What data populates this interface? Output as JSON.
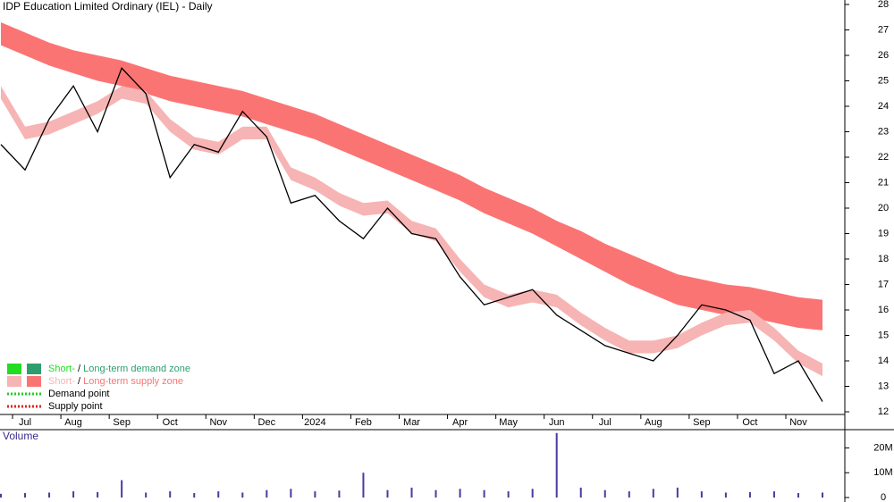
{
  "chart_data": [
    {
      "type": "line",
      "title": "IDP Education Limited Ordinary (IEL) - Daily",
      "categories": [
        null,
        "Jul",
        null,
        "Aug",
        null,
        "Sep",
        null,
        "Oct",
        null,
        "Nov",
        null,
        "Dec",
        null,
        "2024",
        null,
        "Feb",
        null,
        "Mar",
        null,
        "Apr",
        null,
        "May",
        null,
        "Jun",
        null,
        "Jul",
        null,
        "Aug",
        null,
        "Sep",
        null,
        "Oct",
        null,
        "Nov",
        null
      ],
      "ylim": [
        12,
        28
      ],
      "yticks": [
        12,
        13,
        14,
        15,
        16,
        17,
        18,
        19,
        20,
        21,
        22,
        23,
        24,
        25,
        26,
        27,
        28
      ],
      "series": [
        {
          "name": "Long-term supply zone",
          "color": "#fb7474",
          "values": [
            27.3,
            26.9,
            26.5,
            26.2,
            26.0,
            25.8,
            25.5,
            25.2,
            25.0,
            24.8,
            24.6,
            24.3,
            24.0,
            23.7,
            23.3,
            22.9,
            22.5,
            22.1,
            21.7,
            21.3,
            20.8,
            20.4,
            20.0,
            19.5,
            19.1,
            18.6,
            18.2,
            17.8,
            17.4,
            17.2,
            17.0,
            16.9,
            16.7,
            16.5,
            16.4
          ]
        },
        {
          "name": "Long-term supply zone lower",
          "color": "#fb7474",
          "values": [
            26.4,
            26.0,
            25.6,
            25.3,
            25.0,
            24.8,
            24.5,
            24.2,
            24.0,
            23.8,
            23.6,
            23.3,
            23.0,
            22.7,
            22.3,
            21.9,
            21.5,
            21.1,
            20.7,
            20.3,
            19.8,
            19.4,
            19.0,
            18.5,
            18.0,
            17.5,
            17.0,
            16.6,
            16.2,
            16.0,
            15.8,
            15.7,
            15.5,
            15.3,
            15.2
          ]
        },
        {
          "name": "Short-term supply zone",
          "color": "#f7b4b4",
          "values": [
            24.8,
            23.2,
            23.4,
            23.8,
            24.2,
            24.8,
            24.6,
            23.5,
            22.8,
            22.6,
            23.2,
            23.2,
            21.6,
            21.2,
            20.6,
            20.2,
            20.3,
            19.5,
            19.2,
            18.0,
            17.0,
            16.6,
            16.8,
            16.6,
            15.9,
            15.3,
            14.8,
            14.8,
            15.0,
            15.5,
            15.9,
            16.0,
            15.3,
            14.4,
            13.9
          ]
        },
        {
          "name": "Short-term supply zone lower",
          "color": "#f7b4b4",
          "values": [
            24.3,
            22.7,
            22.9,
            23.3,
            23.7,
            24.3,
            24.1,
            23.0,
            22.3,
            22.1,
            22.7,
            22.7,
            21.1,
            20.7,
            20.1,
            19.7,
            19.8,
            19.0,
            18.7,
            17.5,
            16.5,
            16.1,
            16.3,
            16.1,
            15.4,
            14.8,
            14.3,
            14.3,
            14.5,
            15.0,
            15.4,
            15.5,
            14.8,
            13.9,
            13.4
          ]
        },
        {
          "name": "Price",
          "color": "#000000",
          "values": [
            22.5,
            21.5,
            23.5,
            24.8,
            23.0,
            25.5,
            24.5,
            21.2,
            22.5,
            22.2,
            23.8,
            22.8,
            20.2,
            20.5,
            19.5,
            18.8,
            20.0,
            19.0,
            18.8,
            17.3,
            16.2,
            16.5,
            16.8,
            15.8,
            15.2,
            14.6,
            14.3,
            14.0,
            15.0,
            16.2,
            16.0,
            15.6,
            13.5,
            14.0,
            12.4
          ]
        }
      ],
      "legend": [
        {
          "short": "Short-",
          "sep": " / ",
          "long": "Long-term demand zone",
          "short_color": "#22dd22",
          "long_color": "#2e9e6e"
        },
        {
          "short": "Short-",
          "sep": " / ",
          "long": "Long-term supply zone",
          "short_color": "#f7b4b4",
          "long_color": "#fb7474"
        }
      ],
      "points": [
        {
          "label": "Demand point",
          "color": "#22cc22"
        },
        {
          "label": "Supply point",
          "color": "#dd2222"
        }
      ]
    },
    {
      "type": "bar",
      "title": "Volume",
      "color": "#4a3aa0",
      "ylim": [
        0,
        27000000
      ],
      "yticks": [
        0,
        {
          "value": 10000000,
          "label": "10M"
        },
        {
          "value": 20000000,
          "label": "20M"
        }
      ],
      "values": [
        1500000,
        1800000,
        2000000,
        2500000,
        2200000,
        7000000,
        2000000,
        2500000,
        1800000,
        2500000,
        2000000,
        3000000,
        3500000,
        2500000,
        2800000,
        10000000,
        3000000,
        4000000,
        3000000,
        3500000,
        3000000,
        2500000,
        3500000,
        26000000,
        4000000,
        3000000,
        2500000,
        3500000,
        4000000,
        2500000,
        2000000,
        2200000,
        2500000,
        1800000,
        2000000
      ]
    }
  ]
}
